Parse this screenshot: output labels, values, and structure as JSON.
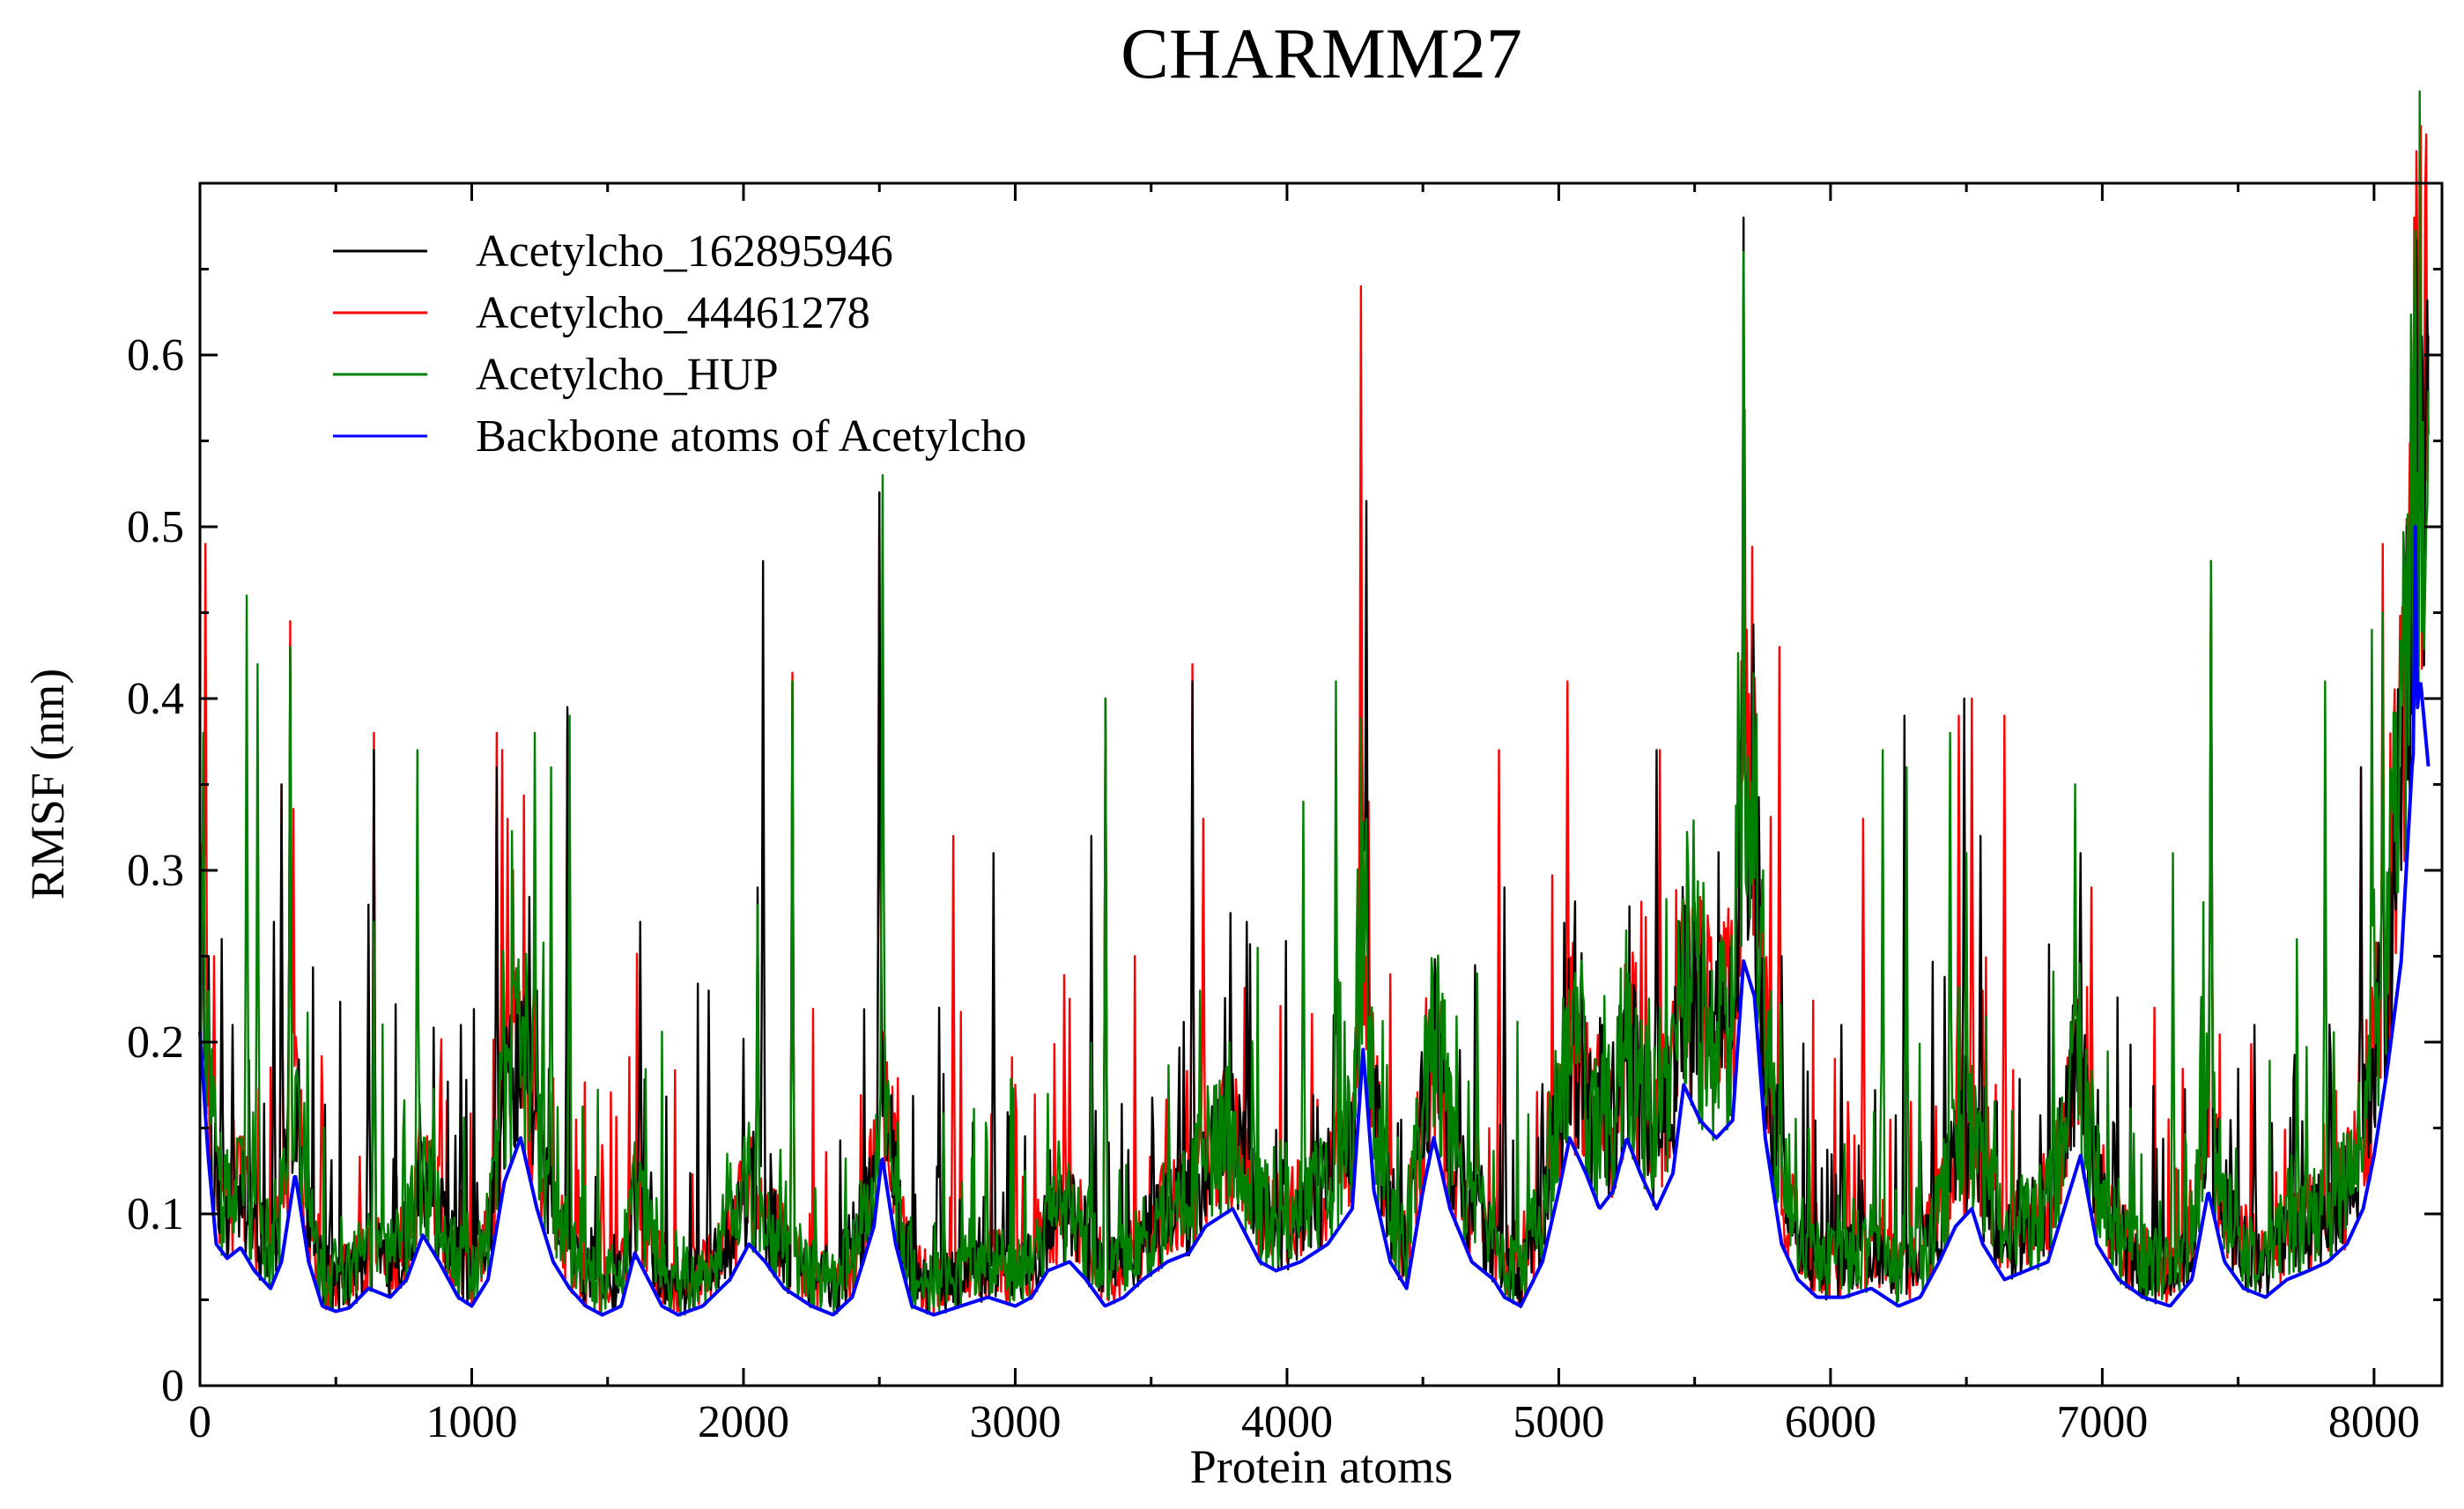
{
  "chart_data": {
    "type": "line",
    "title": "CHARMM27",
    "xlabel": "Protein atoms",
    "ylabel": "RMSF (nm)",
    "xlim": [
      0,
      8250
    ],
    "ylim": [
      0,
      0.7
    ],
    "xticks": [
      0,
      1000,
      2000,
      3000,
      4000,
      5000,
      6000,
      7000,
      8000
    ],
    "yticks": [
      0,
      0.1,
      0.2,
      0.3,
      0.4,
      0.5,
      0.6
    ],
    "ytick_labels": [
      "0",
      "0.1",
      "0.2",
      "0.3",
      "0.4",
      "0.5",
      "0.6"
    ],
    "grid": false,
    "legend_position": "top-left",
    "x_count": 8200,
    "baseline": [
      [
        0,
        0.2
      ],
      [
        30,
        0.13
      ],
      [
        60,
        0.08
      ],
      [
        100,
        0.072
      ],
      [
        150,
        0.078
      ],
      [
        200,
        0.065
      ],
      [
        260,
        0.055
      ],
      [
        300,
        0.07
      ],
      [
        350,
        0.12
      ],
      [
        400,
        0.07
      ],
      [
        450,
        0.045
      ],
      [
        500,
        0.042
      ],
      [
        550,
        0.044
      ],
      [
        620,
        0.055
      ],
      [
        700,
        0.05
      ],
      [
        760,
        0.06
      ],
      [
        820,
        0.085
      ],
      [
        880,
        0.07
      ],
      [
        950,
        0.05
      ],
      [
        1000,
        0.045
      ],
      [
        1060,
        0.06
      ],
      [
        1120,
        0.115
      ],
      [
        1180,
        0.14
      ],
      [
        1240,
        0.1
      ],
      [
        1300,
        0.07
      ],
      [
        1360,
        0.055
      ],
      [
        1420,
        0.045
      ],
      [
        1480,
        0.04
      ],
      [
        1550,
        0.045
      ],
      [
        1600,
        0.075
      ],
      [
        1650,
        0.06
      ],
      [
        1700,
        0.045
      ],
      [
        1760,
        0.04
      ],
      [
        1850,
        0.045
      ],
      [
        1950,
        0.06
      ],
      [
        2020,
        0.08
      ],
      [
        2080,
        0.07
      ],
      [
        2150,
        0.055
      ],
      [
        2250,
        0.045
      ],
      [
        2330,
        0.04
      ],
      [
        2400,
        0.05
      ],
      [
        2480,
        0.09
      ],
      [
        2510,
        0.13
      ],
      [
        2560,
        0.08
      ],
      [
        2620,
        0.045
      ],
      [
        2700,
        0.04
      ],
      [
        2800,
        0.045
      ],
      [
        2900,
        0.05
      ],
      [
        3000,
        0.045
      ],
      [
        3060,
        0.05
      ],
      [
        3120,
        0.065
      ],
      [
        3200,
        0.07
      ],
      [
        3260,
        0.06
      ],
      [
        3330,
        0.045
      ],
      [
        3400,
        0.05
      ],
      [
        3470,
        0.06
      ],
      [
        3560,
        0.07
      ],
      [
        3640,
        0.075
      ],
      [
        3700,
        0.09
      ],
      [
        3800,
        0.1
      ],
      [
        3850,
        0.085
      ],
      [
        3900,
        0.07
      ],
      [
        3960,
        0.065
      ],
      [
        4050,
        0.07
      ],
      [
        4150,
        0.08
      ],
      [
        4240,
        0.1
      ],
      [
        4280,
        0.19
      ],
      [
        4320,
        0.11
      ],
      [
        4380,
        0.07
      ],
      [
        4440,
        0.055
      ],
      [
        4500,
        0.11
      ],
      [
        4540,
        0.14
      ],
      [
        4600,
        0.1
      ],
      [
        4680,
        0.07
      ],
      [
        4760,
        0.06
      ],
      [
        4800,
        0.05
      ],
      [
        4860,
        0.045
      ],
      [
        4940,
        0.07
      ],
      [
        5000,
        0.11
      ],
      [
        5040,
        0.14
      ],
      [
        5100,
        0.12
      ],
      [
        5150,
        0.1
      ],
      [
        5200,
        0.11
      ],
      [
        5250,
        0.14
      ],
      [
        5300,
        0.12
      ],
      [
        5360,
        0.1
      ],
      [
        5420,
        0.12
      ],
      [
        5460,
        0.17
      ],
      [
        5520,
        0.15
      ],
      [
        5580,
        0.14
      ],
      [
        5640,
        0.15
      ],
      [
        5680,
        0.24
      ],
      [
        5720,
        0.22
      ],
      [
        5760,
        0.14
      ],
      [
        5820,
        0.08
      ],
      [
        5880,
        0.06
      ],
      [
        5950,
        0.05
      ],
      [
        6050,
        0.05
      ],
      [
        6150,
        0.055
      ],
      [
        6250,
        0.045
      ],
      [
        6330,
        0.05
      ],
      [
        6400,
        0.07
      ],
      [
        6460,
        0.09
      ],
      [
        6520,
        0.1
      ],
      [
        6560,
        0.08
      ],
      [
        6640,
        0.06
      ],
      [
        6720,
        0.065
      ],
      [
        6800,
        0.07
      ],
      [
        6880,
        0.11
      ],
      [
        6920,
        0.13
      ],
      [
        6980,
        0.08
      ],
      [
        7060,
        0.06
      ],
      [
        7150,
        0.05
      ],
      [
        7250,
        0.045
      ],
      [
        7330,
        0.06
      ],
      [
        7390,
        0.11
      ],
      [
        7450,
        0.07
      ],
      [
        7520,
        0.055
      ],
      [
        7600,
        0.05
      ],
      [
        7680,
        0.06
      ],
      [
        7760,
        0.065
      ],
      [
        7830,
        0.07
      ],
      [
        7900,
        0.08
      ],
      [
        7960,
        0.1
      ],
      [
        8000,
        0.13
      ],
      [
        8050,
        0.18
      ],
      [
        8100,
        0.24
      ],
      [
        8140,
        0.35
      ],
      [
        8170,
        0.4
      ],
      [
        8200,
        0.35
      ]
    ],
    "series": [
      {
        "name": "Acetylcho_162895946",
        "color": "#000000",
        "noise": 0.55,
        "seed": 11,
        "peaks": [
          [
            30,
            0.25
          ],
          [
            80,
            0.26
          ],
          [
            120,
            0.21
          ],
          [
            270,
            0.27
          ],
          [
            300,
            0.35
          ],
          [
            330,
            0.43
          ],
          [
            620,
            0.28
          ],
          [
            640,
            0.37
          ],
          [
            960,
            0.21
          ],
          [
            1090,
            0.36
          ],
          [
            1240,
            0.23
          ],
          [
            1350,
            0.395
          ],
          [
            1620,
            0.27
          ],
          [
            1870,
            0.23
          ],
          [
            2050,
            0.29
          ],
          [
            2070,
            0.48
          ],
          [
            2180,
            0.41
          ],
          [
            2500,
            0.52
          ],
          [
            2720,
            0.22
          ],
          [
            2920,
            0.31
          ],
          [
            3280,
            0.32
          ],
          [
            3330,
            0.4
          ],
          [
            3650,
            0.41
          ],
          [
            3850,
            0.27
          ],
          [
            4180,
            0.35
          ],
          [
            4290,
            0.515
          ],
          [
            4800,
            0.29
          ],
          [
            5160,
            0.21
          ],
          [
            5360,
            0.37
          ],
          [
            5680,
            0.68
          ],
          [
            5820,
            0.25
          ],
          [
            6040,
            0.21
          ],
          [
            6270,
            0.39
          ],
          [
            6490,
            0.4
          ],
          [
            6550,
            0.32
          ],
          [
            6920,
            0.31
          ],
          [
            7400,
            0.48
          ],
          [
            7560,
            0.21
          ],
          [
            7950,
            0.36
          ],
          [
            8030,
            0.42
          ],
          [
            8120,
            0.41
          ],
          [
            8180,
            0.37
          ]
        ]
      },
      {
        "name": "Acetylcho_44461278",
        "color": "#ff0000",
        "noise": 0.6,
        "seed": 23,
        "peaks": [
          [
            18,
            0.49
          ],
          [
            50,
            0.25
          ],
          [
            300,
            0.35
          ],
          [
            330,
            0.445
          ],
          [
            640,
            0.38
          ],
          [
            1090,
            0.38
          ],
          [
            1110,
            0.37
          ],
          [
            1130,
            0.33
          ],
          [
            1150,
            0.3
          ],
          [
            1350,
            0.38
          ],
          [
            2180,
            0.415
          ],
          [
            2500,
            0.52
          ],
          [
            2770,
            0.32
          ],
          [
            3330,
            0.4
          ],
          [
            3650,
            0.42
          ],
          [
            3690,
            0.33
          ],
          [
            4270,
            0.64
          ],
          [
            4300,
            0.34
          ],
          [
            4700,
            0.2
          ],
          [
            4780,
            0.37
          ],
          [
            5030,
            0.41
          ],
          [
            5370,
            0.37
          ],
          [
            5690,
            0.44
          ],
          [
            5810,
            0.43
          ],
          [
            6120,
            0.33
          ],
          [
            6470,
            0.39
          ],
          [
            6520,
            0.4
          ],
          [
            6560,
            0.23
          ],
          [
            6640,
            0.39
          ],
          [
            6900,
            0.33
          ],
          [
            6960,
            0.29
          ],
          [
            7190,
            0.22
          ],
          [
            7400,
            0.48
          ],
          [
            7850,
            0.2
          ],
          [
            7950,
            0.36
          ],
          [
            8030,
            0.49
          ],
          [
            8150,
            0.59
          ],
          [
            8170,
            0.34
          ]
        ]
      },
      {
        "name": "Acetylcho_HUP",
        "color": "#008000",
        "noise": 0.62,
        "seed": 37,
        "peaks": [
          [
            10,
            0.38
          ],
          [
            170,
            0.46
          ],
          [
            210,
            0.42
          ],
          [
            330,
            0.43
          ],
          [
            640,
            0.27
          ],
          [
            800,
            0.37
          ],
          [
            1230,
            0.38
          ],
          [
            1290,
            0.36
          ],
          [
            1360,
            0.39
          ],
          [
            2050,
            0.28
          ],
          [
            2180,
            0.41
          ],
          [
            2510,
            0.53
          ],
          [
            3330,
            0.4
          ],
          [
            3680,
            0.23
          ],
          [
            4060,
            0.34
          ],
          [
            4180,
            0.41
          ],
          [
            4290,
            0.33
          ],
          [
            4700,
            0.24
          ],
          [
            5440,
            0.25
          ],
          [
            5680,
            0.66
          ],
          [
            5750,
            0.3
          ],
          [
            6190,
            0.37
          ],
          [
            6280,
            0.36
          ],
          [
            6440,
            0.38
          ],
          [
            6500,
            0.31
          ],
          [
            6900,
            0.35
          ],
          [
            7260,
            0.31
          ],
          [
            7400,
            0.48
          ],
          [
            7820,
            0.41
          ],
          [
            7990,
            0.44
          ],
          [
            8030,
            0.45
          ],
          [
            8160,
            0.1
          ]
        ]
      },
      {
        "name": "Backbone atoms of Acetylcho",
        "color": "#0000ff",
        "noise": 0,
        "seed": 5,
        "peaks": [
          [
            8150,
            0.5
          ]
        ]
      }
    ]
  }
}
